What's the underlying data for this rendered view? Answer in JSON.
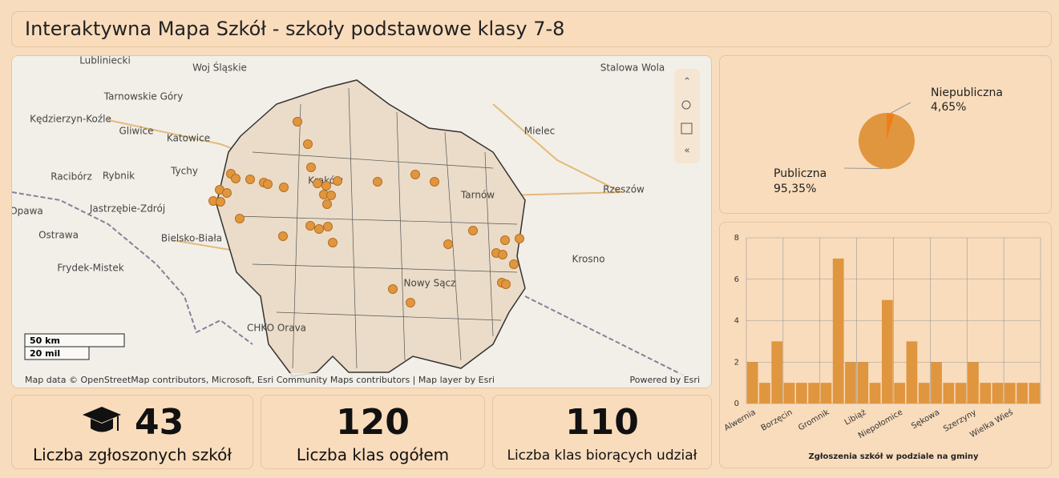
{
  "header": {
    "title": "Interaktywna Mapa Szkół - szkoły podstawowe klasy 7-8"
  },
  "map": {
    "labels": [
      "Lubliniecki",
      "Woj Śląskie",
      "Tarnowskie Góry",
      "Kędzierzyn-Koźle",
      "Gliwice",
      "Katowice",
      "Racibórz",
      "Rybnik",
      "Tychy",
      "Opawa",
      "Jastrzębie-Zdrój",
      "Ostrawa",
      "Bielsko-Biała",
      "Frydek-Mistek",
      "Stalowa Wola",
      "Mielec",
      "Rzeszów",
      "Krosno",
      "Kraków",
      "Tarnów",
      "Nowy Sącz",
      "CHKO Orava"
    ],
    "scale": [
      "50 km",
      "20 mil"
    ],
    "attribution": "Map data © OpenStreetMap contributors, Microsoft, Esri Community Maps contributors | Map layer by Esri",
    "powered_by": "Powered by Esri"
  },
  "kpis": [
    {
      "value": 43,
      "label": "Liczba zgłoszonych szkół"
    },
    {
      "value": 120,
      "label": "Liczba klas ogółem"
    },
    {
      "value": 110,
      "label": "Liczba klas biorących udział"
    }
  ],
  "chart_data": [
    {
      "type": "pie",
      "categories": [
        "Niepubliczna",
        "Publiczna"
      ],
      "values": [
        4.65,
        95.35
      ],
      "value_labels": [
        "4,65%",
        "95,35%"
      ],
      "colors": [
        "#f07d1a",
        "#e0963f"
      ]
    },
    {
      "type": "bar",
      "categories": [
        "Alwernia",
        null,
        null,
        "Borzęcin",
        null,
        null,
        "Gromnik",
        null,
        null,
        "Libiąż",
        null,
        null,
        "Niepołomice",
        null,
        null,
        "Sękowa",
        null,
        null,
        "Szerzyny",
        null,
        null,
        "Wielka Wieś",
        null,
        null
      ],
      "values": [
        2,
        1,
        3,
        1,
        1,
        1,
        1,
        7,
        2,
        2,
        1,
        5,
        1,
        3,
        1,
        2,
        1,
        1,
        2,
        1,
        1,
        1,
        1,
        1
      ],
      "color": "#e0963f",
      "ylim": [
        0,
        8
      ],
      "yticks": [
        0,
        2,
        4,
        6,
        8
      ],
      "grid": true,
      "xlabel": "Zgłoszenia szkół w podziale na gminy"
    }
  ]
}
